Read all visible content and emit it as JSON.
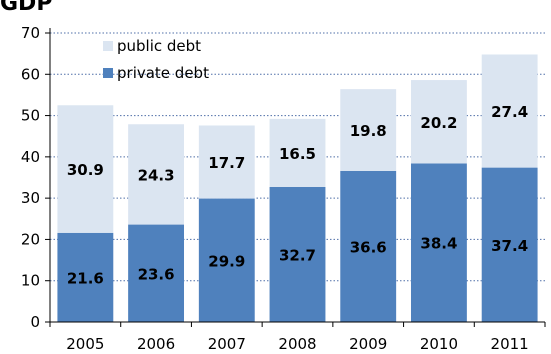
{
  "chart_data": {
    "type": "bar",
    "stacked": true,
    "title": "GDP",
    "categories": [
      "2005",
      "2006",
      "2007",
      "2008",
      "2009",
      "2010",
      "2011"
    ],
    "series": [
      {
        "name": "private debt",
        "values": [
          21.6,
          23.6,
          29.9,
          32.7,
          36.6,
          38.4,
          37.4
        ],
        "color": "#4f81bd"
      },
      {
        "name": "public debt",
        "values": [
          30.9,
          24.3,
          17.7,
          16.5,
          19.8,
          20.2,
          27.4
        ],
        "color": "#dbe5f1"
      }
    ],
    "ylim": [
      0,
      70
    ],
    "yticks": [
      0,
      10,
      20,
      30,
      40,
      50,
      60,
      70
    ],
    "grid": true,
    "legend": "top-left"
  }
}
